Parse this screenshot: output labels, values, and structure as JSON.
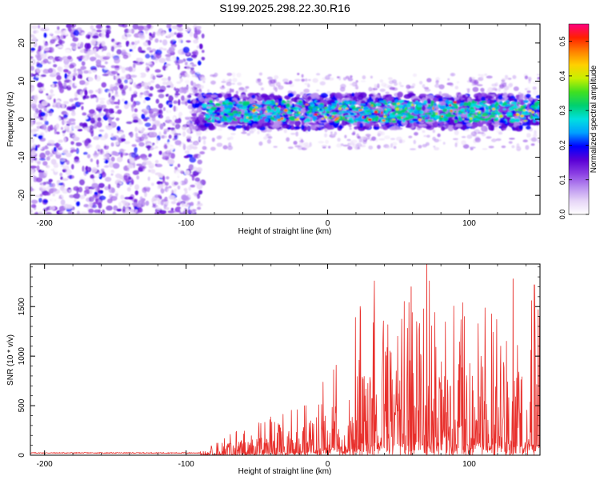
{
  "title": "S199.2025.298.22.30.R16",
  "colors": {
    "snr_line": "#e8302c",
    "axis": "#000000",
    "colormap": [
      "#ffffff",
      "#e6d5f7",
      "#b98ff0",
      "#8b3fe3",
      "#5a00d6",
      "#0000ff",
      "#00a0ff",
      "#00e0e0",
      "#00d070",
      "#40e020",
      "#c8f000",
      "#ffd000",
      "#ff7f00",
      "#ff2000",
      "#ff0080"
    ]
  },
  "chart_data": [
    {
      "type": "heatmap",
      "description": "Normalized spectral amplitude versus height of straight line and frequency",
      "xlabel": "Height of straight line (km)",
      "ylabel": "Frequency (Hz)",
      "xlim": [
        -210,
        150
      ],
      "ylim": [
        -25,
        25
      ],
      "xticks": [
        -200,
        -100,
        0,
        100
      ],
      "xtick_labels": [
        "-200",
        "-100",
        "0",
        "100"
      ],
      "yticks": [
        -20,
        -10,
        0,
        10,
        20
      ],
      "ytick_labels": [
        "-20",
        "-10",
        "0",
        "10",
        "20"
      ],
      "colorbar": {
        "label": "Normalized spectral amplitude",
        "range": [
          0,
          0.55
        ],
        "ticks": [
          0.0,
          0.1,
          0.2,
          0.3,
          0.4,
          0.5
        ],
        "tick_labels": [
          "0.0",
          "0.1",
          "0.2",
          "0.3",
          "0.4",
          "0.5"
        ]
      },
      "regions": [
        {
          "name": "noise",
          "x_range": [
            -210,
            -88
          ],
          "freq_range": [
            -25,
            25
          ],
          "amplitude_range": [
            0.0,
            0.1
          ]
        },
        {
          "name": "signal band",
          "x_range": [
            -95,
            150
          ],
          "center_freq": 2,
          "halfwidth": 4.5,
          "amplitude_range": [
            0.1,
            0.5
          ]
        }
      ]
    },
    {
      "type": "line",
      "xlabel": "Height of straight line (km)",
      "ylabel": "SNR (10 * v/v)",
      "xlim": [
        -210,
        150
      ],
      "ylim": [
        0,
        1930
      ],
      "xticks": [
        -200,
        -100,
        0,
        100
      ],
      "xtick_labels": [
        "-200",
        "-100",
        "0",
        "100"
      ],
      "yticks": [
        0,
        500,
        1000,
        1500
      ],
      "ytick_labels": [
        "0",
        "500",
        "1000",
        "1500"
      ],
      "series": [
        {
          "name": "SNR",
          "x": [
            -210,
            -180,
            -150,
            -120,
            -90,
            -80,
            -70,
            -60,
            -50,
            -40,
            -30,
            -20,
            -10,
            0,
            10,
            20,
            30,
            40,
            50,
            60,
            70,
            80,
            90,
            100,
            110,
            120,
            130,
            140,
            150
          ],
          "envelope_max": [
            30,
            30,
            30,
            30,
            40,
            120,
            220,
            280,
            330,
            390,
            460,
            520,
            640,
            1000,
            1150,
            1500,
            1750,
            1600,
            1550,
            1640,
            1930,
            1620,
            1500,
            1580,
            1620,
            1530,
            1780,
            1620,
            1500
          ],
          "peaks": [
            {
              "x": 70,
              "y": 1930
            },
            {
              "x": 131,
              "y": 1780
            },
            {
              "x": 33,
              "y": 1760
            },
            {
              "x": 146,
              "y": 1720
            },
            {
              "x": 59,
              "y": 1700
            },
            {
              "x": 23,
              "y": 1500
            }
          ]
        }
      ]
    }
  ]
}
